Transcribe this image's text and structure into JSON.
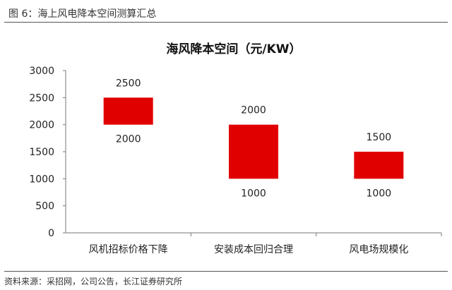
{
  "caption": "图 6：海上风电降本空间测算汇总",
  "source": "资料来源：采招网，公司公告，长江证券研究所",
  "chart_data": {
    "type": "bar",
    "title": "海风降本空间（元/KW）",
    "categories": [
      "风机招标价格下降",
      "安装成本回归合理",
      "风电场规模化"
    ],
    "ranges": [
      {
        "low": 2000,
        "high": 2500
      },
      {
        "low": 1000,
        "high": 2000
      },
      {
        "low": 1000,
        "high": 1500
      }
    ],
    "ylim": [
      0,
      3000
    ],
    "yticks": [
      0,
      500,
      1000,
      1500,
      2000,
      2500,
      3000
    ],
    "grid": false,
    "bar_color": "#e10000"
  }
}
